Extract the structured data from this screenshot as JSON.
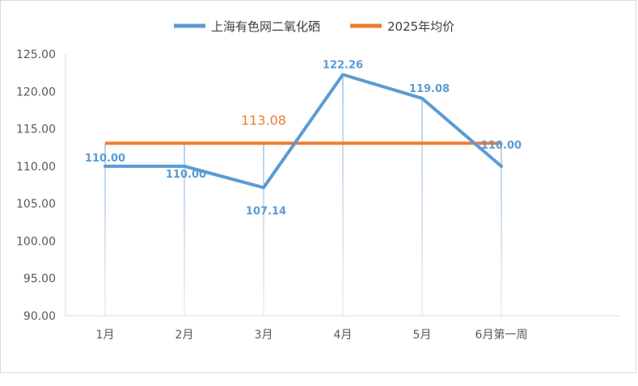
{
  "chart_data": {
    "type": "line",
    "categories": [
      "1月",
      "2月",
      "3月",
      "4月",
      "5月",
      "6月第一周"
    ],
    "series": [
      {
        "name": "上海有色网二氧化硒",
        "values": [
          110.0,
          110.0,
          107.14,
          122.26,
          119.08,
          110.0
        ],
        "labels": [
          "110.00",
          "110.00",
          "107.14",
          "122.26",
          "119.08",
          "110.00"
        ],
        "color": "#5b9bd5"
      },
      {
        "name": "2025年均价",
        "values": [
          113.08,
          113.08,
          113.08,
          113.08,
          113.08,
          113.08
        ],
        "color": "#ed7d31"
      }
    ],
    "average_label": "113.08",
    "yticks": [
      "90.00",
      "95.00",
      "100.00",
      "105.00",
      "110.00",
      "115.00",
      "120.00",
      "125.00"
    ],
    "ylim": [
      90,
      125
    ],
    "legend_position": "top",
    "axis_color": "#d9d9d9",
    "dropline_color": "#9dc3e6"
  }
}
